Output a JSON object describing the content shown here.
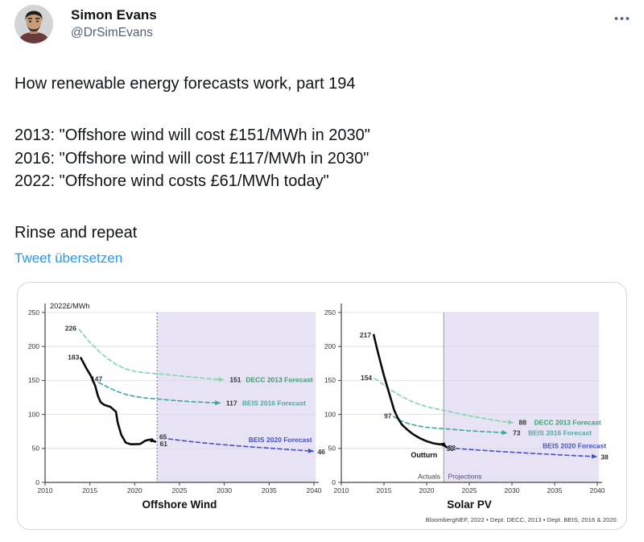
{
  "tweet": {
    "author_name": "Simon Evans",
    "author_handle": "@DrSimEvans",
    "paragraphs": [
      "How renewable energy forecasts work, part 194",
      "2013: \"Offshore wind will cost £151/MWh in 2030\"\n2016: \"Offshore wind will cost £117/MWh in 2030\"\n2022: \"Offshore wind costs £61/MWh today\"",
      "Rinse and repeat"
    ],
    "translate_label": "Tweet übersetzen"
  },
  "chart_card": {
    "source_note": "BloombergNEF, 2022 • Dept. DECC, 2013 • Dept. BEIS, 2016 & 2020."
  },
  "theme": {
    "link_blue": "#1d9bf0",
    "text_primary": "#0f1419",
    "text_secondary": "#536471",
    "card_border": "#cfd9de"
  },
  "chart_data": [
    {
      "type": "line",
      "title": "Offshore Wind",
      "unit_label": "2022£/MWh",
      "xlabel": "",
      "ylabel": "2022£/MWh",
      "xlim": [
        2010,
        2040
      ],
      "ylim": [
        0,
        250
      ],
      "x_ticks": [
        2010,
        2015,
        2020,
        2025,
        2030,
        2035,
        2040
      ],
      "y_ticks": [
        0,
        50,
        100,
        150,
        200,
        250
      ],
      "grid": true,
      "projection_start_year": 2022.5,
      "projection_end_year": 2040.2,
      "projection_fill": "#e7e3f4",
      "divider_style": "dotted",
      "series": [
        {
          "name": "DECC 2013 Forecast",
          "color": "#7ed8a4",
          "dash": true,
          "width": 1.6,
          "arrow": true,
          "points": [
            [
              2013.8,
              225
            ],
            [
              2015,
              206
            ],
            [
              2016,
              193
            ],
            [
              2017,
              182
            ],
            [
              2018,
              173
            ],
            [
              2019,
              167
            ],
            [
              2020,
              163.5
            ],
            [
              2021,
              161.5
            ],
            [
              2022.5,
              160
            ],
            [
              2024,
              158
            ],
            [
              2026,
              155.5
            ],
            [
              2028,
              153
            ],
            [
              2029.9,
              151
            ]
          ],
          "labels": [
            {
              "text": "226",
              "year": 2013.5,
              "value": 227,
              "anchor": "end",
              "color": "#333333",
              "bold": true
            },
            {
              "text": "151",
              "year": 2030.6,
              "value": 151,
              "anchor": "start",
              "color": "#333333",
              "bold": true
            },
            {
              "text": "DECC 2013 Forecast",
              "year": 2032.4,
              "value": 151,
              "anchor": "start",
              "color": "#3f9b70",
              "bold": true
            }
          ]
        },
        {
          "name": "BEIS 2016 Forecast",
          "color": "#3aa8a2",
          "dash": true,
          "width": 1.6,
          "arrow": true,
          "points": [
            [
              2016,
              147
            ],
            [
              2017,
              140
            ],
            [
              2018,
              134
            ],
            [
              2019,
              129.5
            ],
            [
              2020,
              126.5
            ],
            [
              2021,
              124.5
            ],
            [
              2022.5,
              122.8
            ],
            [
              2024,
              121
            ],
            [
              2026,
              119
            ],
            [
              2028,
              117.7
            ],
            [
              2029.5,
              117
            ]
          ],
          "labels": [
            {
              "text": "147",
              "year": 2016.4,
              "value": 152,
              "anchor": "end",
              "color": "#333333",
              "bold": true
            },
            {
              "text": "117",
              "year": 2030.2,
              "value": 117,
              "anchor": "start",
              "color": "#333333",
              "bold": true
            },
            {
              "text": "BEIS 2016 Forecast",
              "year": 2032.0,
              "value": 117,
              "anchor": "start",
              "color": "#49aba5",
              "bold": true
            }
          ]
        },
        {
          "name": "BEIS 2020 Forecast",
          "color": "#4450c8",
          "dash": true,
          "width": 1.6,
          "arrow": true,
          "points": [
            [
              2023.8,
              64
            ],
            [
              2025,
              62
            ],
            [
              2027,
              59
            ],
            [
              2029,
              56.5
            ],
            [
              2031,
              54.3
            ],
            [
              2033,
              52.3
            ],
            [
              2035,
              50.5
            ],
            [
              2037,
              48.5
            ],
            [
              2039.9,
              46
            ]
          ],
          "labels": [
            {
              "text": "65",
              "year": 2023.6,
              "value": 67,
              "anchor": "end",
              "color": "#333333",
              "bold": true
            },
            {
              "text": "46",
              "year": 2040.4,
              "value": 45,
              "anchor": "start",
              "color": "#333333",
              "bold": true
            },
            {
              "text": "BEIS 2020 Forecast",
              "year": 2032.7,
              "value": 63,
              "anchor": "start",
              "color": "#4450c8",
              "bold": true
            }
          ]
        },
        {
          "name": "Outturn",
          "color": "#0b0b0b",
          "dash": false,
          "width": 2.6,
          "arrow": true,
          "points": [
            [
              2014,
              183
            ],
            [
              2014.6,
              168
            ],
            [
              2015.1,
              157
            ],
            [
              2015.6,
              142
            ],
            [
              2015.9,
              127
            ],
            [
              2016.2,
              118
            ],
            [
              2016.6,
              114
            ],
            [
              2017.3,
              111
            ],
            [
              2017.9,
              104
            ],
            [
              2018.1,
              88
            ],
            [
              2018.5,
              70
            ],
            [
              2019,
              58.5
            ],
            [
              2019.6,
              56
            ],
            [
              2020.6,
              56.5
            ],
            [
              2021.2,
              61.5
            ],
            [
              2021.7,
              63
            ],
            [
              2022.3,
              60
            ]
          ],
          "labels": [
            {
              "text": "183",
              "year": 2013.8,
              "value": 184,
              "anchor": "end",
              "color": "#333333",
              "bold": true
            },
            {
              "text": "61",
              "year": 2022.8,
              "value": 57,
              "anchor": "start",
              "color": "#333333",
              "bold": true
            }
          ]
        }
      ],
      "annotations": []
    },
    {
      "type": "line",
      "title": "Solar PV",
      "unit_label": "",
      "xlabel": "",
      "ylabel": "2022£/MWh",
      "xlim": [
        2010,
        2040
      ],
      "ylim": [
        0,
        250
      ],
      "x_ticks": [
        2010,
        2015,
        2020,
        2025,
        2030,
        2035,
        2040
      ],
      "y_ticks": [
        0,
        50,
        100,
        150,
        200,
        250
      ],
      "grid": true,
      "projection_start_year": 2022,
      "projection_end_year": 2040.2,
      "projection_fill": "#e7e3f4",
      "divider_style": "solid",
      "series": [
        {
          "name": "DECC 2013 Forecast",
          "color": "#7ed8a4",
          "dash": true,
          "width": 1.6,
          "arrow": true,
          "points": [
            [
              2013.9,
              153
            ],
            [
              2015,
              143.5
            ],
            [
              2016,
              134.5
            ],
            [
              2017,
              127
            ],
            [
              2018,
              120.5
            ],
            [
              2019,
              115.5
            ],
            [
              2020,
              111.5
            ],
            [
              2021,
              108.5
            ],
            [
              2022,
              106
            ],
            [
              2023.5,
              102
            ],
            [
              2025,
              98
            ],
            [
              2027,
              93.5
            ],
            [
              2029,
              89.5
            ],
            [
              2030.1,
              88
            ]
          ],
          "labels": [
            {
              "text": "154",
              "year": 2013.6,
              "value": 154,
              "anchor": "end",
              "color": "#333333",
              "bold": true
            },
            {
              "text": "88",
              "year": 2030.8,
              "value": 88,
              "anchor": "start",
              "color": "#333333",
              "bold": true
            },
            {
              "text": "DECC 2013 Forecast",
              "year": 2032.6,
              "value": 88,
              "anchor": "start",
              "color": "#3f9b70",
              "bold": true
            }
          ]
        },
        {
          "name": "BEIS 2016 Forecast",
          "color": "#3aa8a2",
          "dash": true,
          "width": 1.6,
          "arrow": true,
          "points": [
            [
              2016.1,
              97
            ],
            [
              2017,
              90.5
            ],
            [
              2018,
              86
            ],
            [
              2019,
              83
            ],
            [
              2020,
              81
            ],
            [
              2021,
              79.8
            ],
            [
              2022,
              79
            ],
            [
              2023.5,
              77.5
            ],
            [
              2025,
              76
            ],
            [
              2027,
              74.5
            ],
            [
              2029.4,
              73
            ]
          ],
          "labels": [
            {
              "text": "97",
              "year": 2015.9,
              "value": 98,
              "anchor": "end",
              "color": "#333333",
              "bold": true
            },
            {
              "text": "73",
              "year": 2030.1,
              "value": 73,
              "anchor": "start",
              "color": "#333333",
              "bold": true
            },
            {
              "text": "BEIS 2016 Forecast",
              "year": 2031.9,
              "value": 73,
              "anchor": "start",
              "color": "#49aba5",
              "bold": true
            }
          ]
        },
        {
          "name": "BEIS 2020 Forecast",
          "color": "#4450c8",
          "dash": true,
          "width": 1.6,
          "arrow": true,
          "points": [
            [
              2023.4,
              50
            ],
            [
              2025,
              48.5
            ],
            [
              2027,
              46.8
            ],
            [
              2029,
              45.2
            ],
            [
              2031,
              43.7
            ],
            [
              2033,
              42.3
            ],
            [
              2035,
              41
            ],
            [
              2037,
              39.6
            ],
            [
              2039.9,
              38
            ]
          ],
          "labels": [
            {
              "text": "50",
              "year": 2023.2,
              "value": 50,
              "anchor": "end",
              "color": "#333333",
              "bold": true
            },
            {
              "text": "38",
              "year": 2040.4,
              "value": 37.5,
              "anchor": "start",
              "color": "#333333",
              "bold": true
            },
            {
              "text": "BEIS 2020 Forecast",
              "year": 2033.6,
              "value": 54,
              "anchor": "start",
              "color": "#4450c8",
              "bold": true
            }
          ]
        },
        {
          "name": "Outturn",
          "color": "#0b0b0b",
          "dash": false,
          "width": 2.6,
          "arrow": true,
          "points": [
            [
              2013.8,
              217
            ],
            [
              2014.2,
              196
            ],
            [
              2014.6,
              176
            ],
            [
              2015,
              157
            ],
            [
              2015.4,
              140
            ],
            [
              2015.8,
              123
            ],
            [
              2016.2,
              106
            ],
            [
              2016.6,
              95
            ],
            [
              2017.1,
              85
            ],
            [
              2017.7,
              78
            ],
            [
              2018.4,
              71
            ],
            [
              2019.2,
              65
            ],
            [
              2020,
              60.5
            ],
            [
              2020.8,
              57.5
            ],
            [
              2021.5,
              56
            ],
            [
              2021.9,
              56.5
            ],
            [
              2022.3,
              52
            ]
          ],
          "labels": [
            {
              "text": "217",
              "year": 2013.5,
              "value": 217,
              "anchor": "end",
              "color": "#333333",
              "bold": true
            },
            {
              "text": "52",
              "year": 2022.5,
              "value": 51,
              "anchor": "start",
              "color": "#333333",
              "bold": true
            }
          ]
        }
      ],
      "annotations": [
        {
          "text": "Outturn",
          "year": 2019.7,
          "value": 40,
          "anchor": "middle",
          "color": "#111111",
          "bold": true,
          "size": 9
        },
        {
          "text": "Actuals",
          "year": 2021.6,
          "value": 9,
          "anchor": "end",
          "color": "#3c3c3c",
          "size": 8.5
        },
        {
          "text": "Projections",
          "year": 2022.5,
          "value": 9,
          "anchor": "start",
          "color": "#55496e",
          "size": 8.5
        }
      ]
    }
  ]
}
